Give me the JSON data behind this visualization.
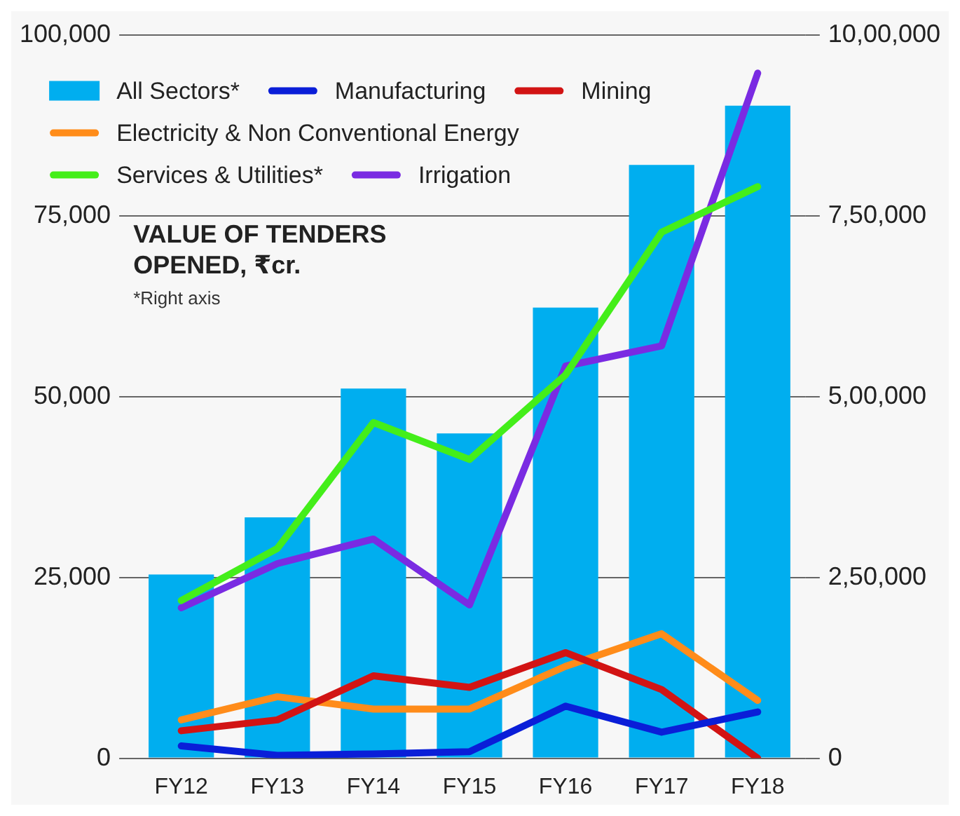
{
  "chart_data": {
    "type": "bar",
    "title": "VALUE OF TENDERS OPENED, ₹cr.",
    "annotations": [
      "*Right axis"
    ],
    "categories": [
      "FY12",
      "FY13",
      "FY14",
      "FY15",
      "FY16",
      "FY17",
      "FY18"
    ],
    "series": [
      {
        "name": "All Sectors*",
        "axis": "y2",
        "color": "#00aeef",
        "values": [
          254000,
          333000,
          511000,
          449000,
          623000,
          820000,
          902000
        ]
      },
      {
        "name": "Manufacturing",
        "type": "line",
        "color": "#0a1ed8",
        "values": [
          1700,
          400,
          600,
          900,
          7200,
          3600,
          6400
        ]
      },
      {
        "name": "Mining",
        "type": "line",
        "color": "#d21414",
        "values": [
          3800,
          5300,
          11400,
          9800,
          14600,
          9500,
          0
        ]
      },
      {
        "name": "Electricity & Non Conventional Energy",
        "type": "line",
        "color": "#ff8c1a",
        "values": [
          5300,
          8500,
          6800,
          6800,
          12700,
          17200,
          8000
        ]
      },
      {
        "name": "Services & Utilities*",
        "type": "line",
        "axis": "y2",
        "color": "#44ee1a",
        "values": [
          218000,
          290000,
          464000,
          413000,
          530000,
          727000,
          790000
        ]
      },
      {
        "name": "Irrigation",
        "type": "line",
        "color": "#7a2be2",
        "values": [
          20800,
          26900,
          30300,
          21200,
          54200,
          57000,
          94700
        ]
      }
    ],
    "ylim": [
      0,
      100000
    ],
    "yticks": [
      {
        "value": 0,
        "label": "0"
      },
      {
        "value": 25000,
        "label": "25,000"
      },
      {
        "value": 50000,
        "label": "50,000"
      },
      {
        "value": 75000,
        "label": "75,000"
      },
      {
        "value": 100000,
        "label": "100,000"
      }
    ],
    "y2lim": [
      0,
      1000000
    ],
    "y2ticks": [
      {
        "value": 0,
        "label": "0"
      },
      {
        "value": 250000,
        "label": "2,50,000"
      },
      {
        "value": 500000,
        "label": "5,00,000"
      },
      {
        "value": 750000,
        "label": "7,50,000"
      },
      {
        "value": 1000000,
        "label": "10,00,000"
      }
    ],
    "grid": "y",
    "legend": "top left",
    "marker": "none",
    "line_style": "solid"
  }
}
